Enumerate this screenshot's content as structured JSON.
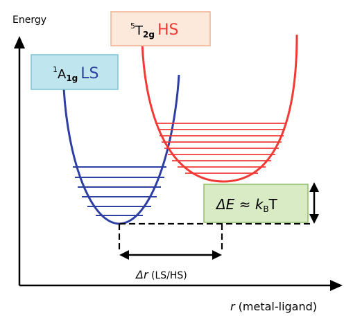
{
  "axes": {
    "y_label": "Energy",
    "x_label_italic": "r",
    "x_label_rest": " (metal-ligand)"
  },
  "states": {
    "low_spin": {
      "term_sup": "1",
      "term_main": "A",
      "term_sub": "1g",
      "spin_label": "LS",
      "color": "#2e3fa3"
    },
    "high_spin": {
      "term_sup": "5",
      "term_main": "T",
      "term_sub": "2g",
      "spin_label": "HS",
      "color": "#f23a35"
    }
  },
  "annotations": {
    "energy_gap": {
      "delta": "ΔE",
      "approx": " ≈ ",
      "k": "k",
      "k_sub": "B",
      "T": "T"
    },
    "distance": {
      "delta": "Δr",
      "rest": " (LS/HS)"
    }
  },
  "colors": {
    "ls_box_fill": "#bfe6ee",
    "ls_box_stroke": "#7cc3d4",
    "hs_box_fill": "#fde8dc",
    "hs_box_stroke": "#f0b08f",
    "gap_box_fill": "#d8ebc4",
    "gap_box_stroke": "#8fbf6a"
  }
}
